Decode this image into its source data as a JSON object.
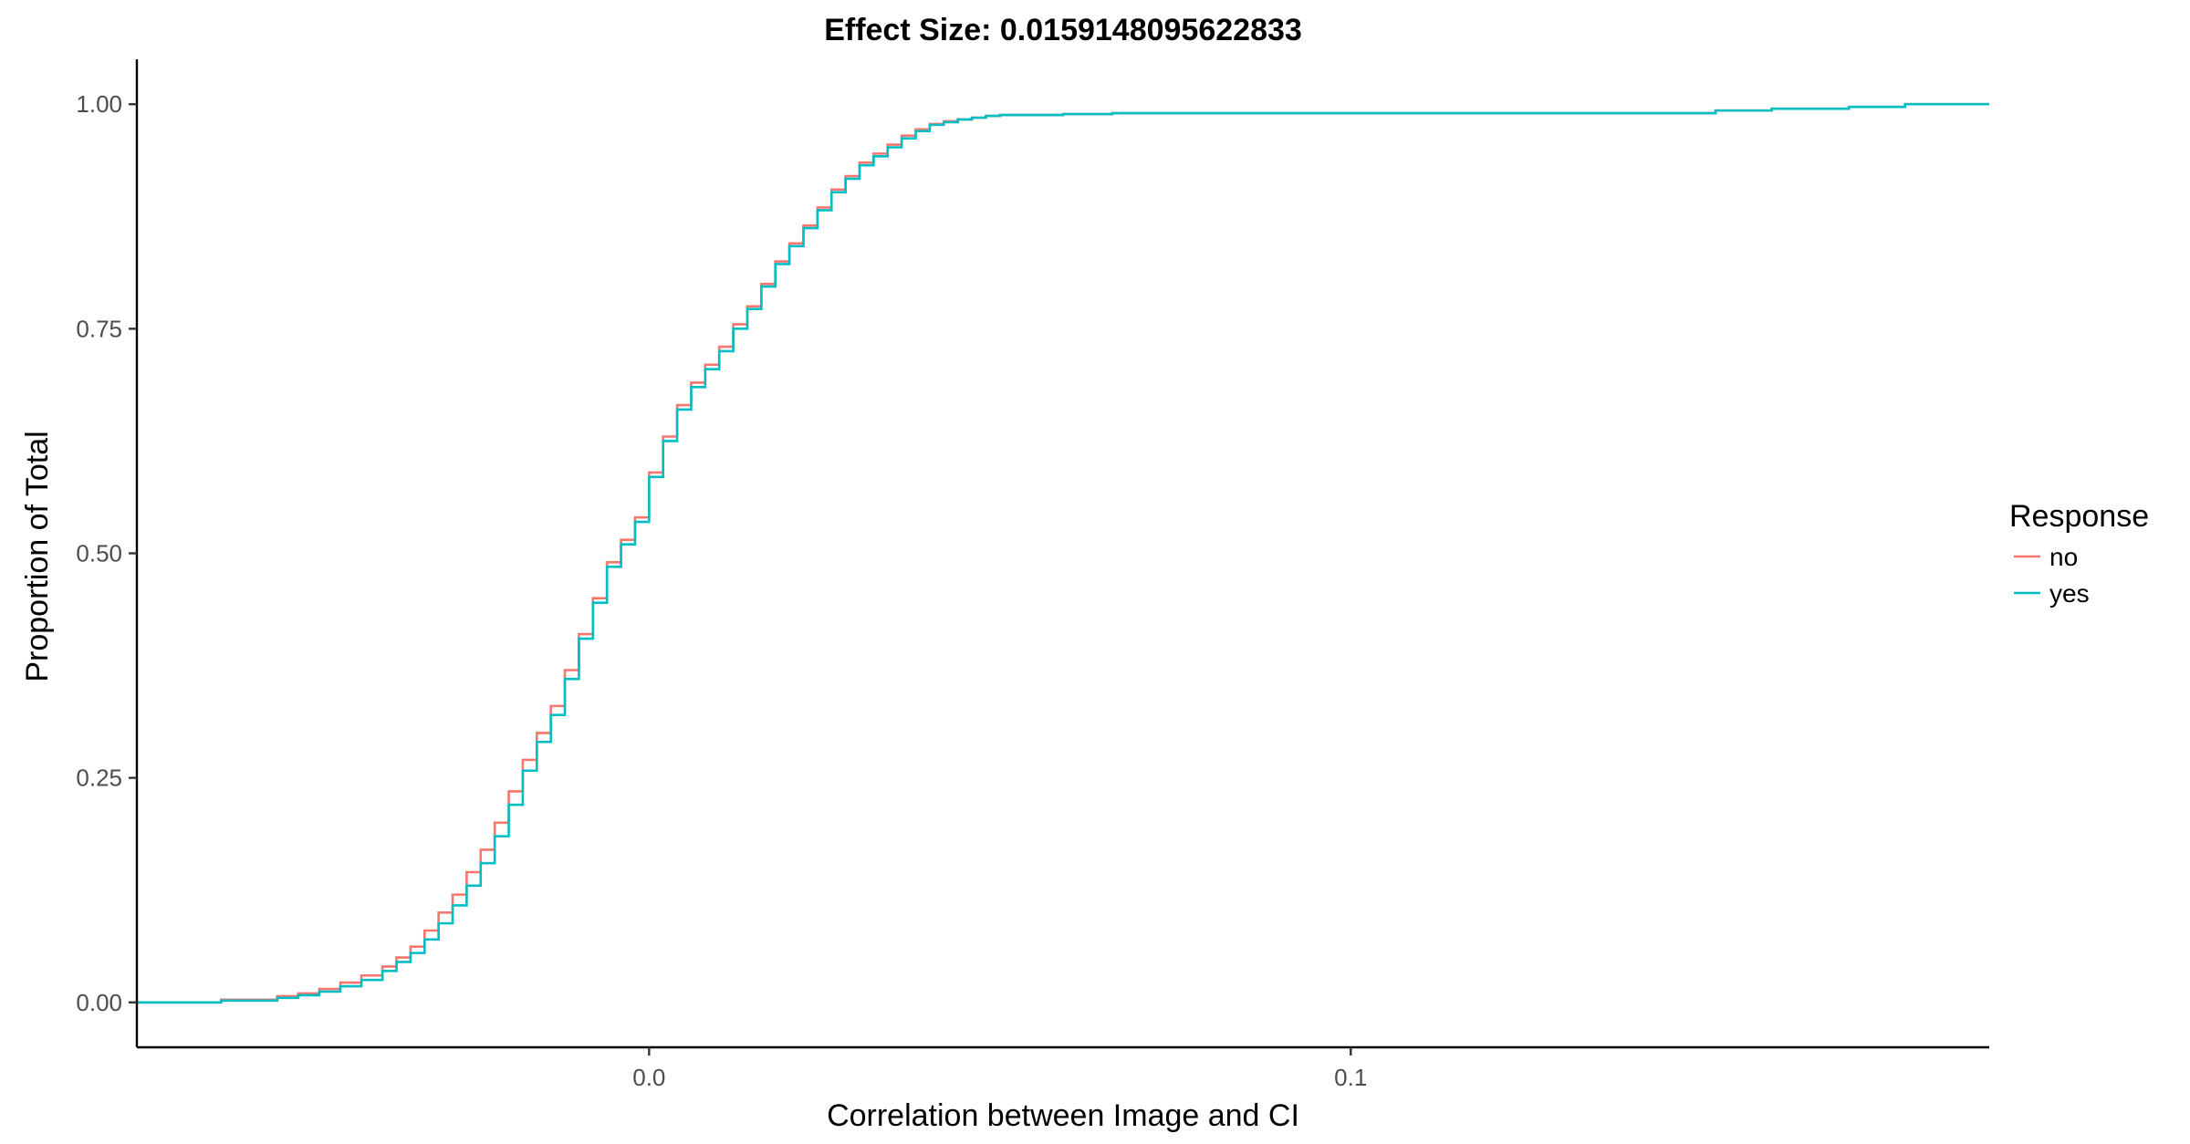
{
  "chart_data": {
    "type": "line",
    "title": "Effect Size: 0.0159148095622833",
    "xlabel": "Correlation between Image and CI",
    "ylabel": "Proportion of Total",
    "xlim": [
      -0.073,
      0.191
    ],
    "ylim": [
      -0.05,
      1.05
    ],
    "x_ticks": [
      0.0,
      0.1
    ],
    "x_tick_labels": [
      "0.0",
      "0.1"
    ],
    "y_ticks": [
      0.0,
      0.25,
      0.5,
      0.75,
      1.0
    ],
    "y_tick_labels": [
      "0.00",
      "0.25",
      "0.50",
      "0.75",
      "1.00"
    ],
    "grid": false,
    "step": true,
    "legend": {
      "title": "Response",
      "position": "right"
    },
    "series": [
      {
        "name": "no",
        "color": "#F8766D",
        "x": [
          -0.073,
          -0.061,
          -0.053,
          -0.05,
          -0.047,
          -0.044,
          -0.041,
          -0.038,
          -0.036,
          -0.034,
          -0.032,
          -0.03,
          -0.028,
          -0.026,
          -0.024,
          -0.022,
          -0.02,
          -0.018,
          -0.016,
          -0.014,
          -0.012,
          -0.01,
          -0.008,
          -0.006,
          -0.004,
          -0.002,
          0.0,
          0.002,
          0.004,
          0.006,
          0.008,
          0.01,
          0.012,
          0.014,
          0.016,
          0.018,
          0.02,
          0.022,
          0.024,
          0.026,
          0.028,
          0.03,
          0.032,
          0.034,
          0.036,
          0.038,
          0.04,
          0.042,
          0.044,
          0.046,
          0.048,
          0.05,
          0.059,
          0.066,
          0.1,
          0.14,
          0.152,
          0.16,
          0.171,
          0.179,
          0.191
        ],
        "y": [
          0.0,
          0.003,
          0.007,
          0.01,
          0.015,
          0.022,
          0.03,
          0.04,
          0.05,
          0.062,
          0.08,
          0.1,
          0.12,
          0.145,
          0.17,
          0.2,
          0.235,
          0.27,
          0.3,
          0.33,
          0.37,
          0.41,
          0.45,
          0.49,
          0.515,
          0.54,
          0.59,
          0.63,
          0.665,
          0.69,
          0.71,
          0.73,
          0.755,
          0.775,
          0.8,
          0.825,
          0.845,
          0.865,
          0.885,
          0.905,
          0.92,
          0.935,
          0.945,
          0.955,
          0.965,
          0.972,
          0.978,
          0.981,
          0.983,
          0.985,
          0.987,
          0.988,
          0.989,
          0.99,
          0.99,
          0.99,
          0.993,
          0.995,
          0.997,
          1.0,
          1.0
        ]
      },
      {
        "name": "yes",
        "color": "#00BFC4",
        "x": [
          -0.073,
          -0.061,
          -0.053,
          -0.05,
          -0.047,
          -0.044,
          -0.041,
          -0.038,
          -0.036,
          -0.034,
          -0.032,
          -0.03,
          -0.028,
          -0.026,
          -0.024,
          -0.022,
          -0.02,
          -0.018,
          -0.016,
          -0.014,
          -0.012,
          -0.01,
          -0.008,
          -0.006,
          -0.004,
          -0.002,
          0.0,
          0.002,
          0.004,
          0.006,
          0.008,
          0.01,
          0.012,
          0.014,
          0.016,
          0.018,
          0.02,
          0.022,
          0.024,
          0.026,
          0.028,
          0.03,
          0.032,
          0.034,
          0.036,
          0.038,
          0.04,
          0.042,
          0.044,
          0.046,
          0.048,
          0.05,
          0.059,
          0.066,
          0.1,
          0.14,
          0.152,
          0.16,
          0.171,
          0.179,
          0.191
        ],
        "y": [
          0.0,
          0.002,
          0.005,
          0.008,
          0.012,
          0.018,
          0.025,
          0.035,
          0.045,
          0.055,
          0.07,
          0.088,
          0.108,
          0.13,
          0.155,
          0.185,
          0.22,
          0.258,
          0.29,
          0.32,
          0.36,
          0.405,
          0.445,
          0.485,
          0.51,
          0.535,
          0.585,
          0.625,
          0.66,
          0.685,
          0.705,
          0.725,
          0.75,
          0.772,
          0.797,
          0.822,
          0.842,
          0.862,
          0.882,
          0.902,
          0.917,
          0.932,
          0.942,
          0.952,
          0.962,
          0.97,
          0.977,
          0.98,
          0.983,
          0.985,
          0.987,
          0.988,
          0.989,
          0.99,
          0.99,
          0.99,
          0.993,
          0.995,
          0.997,
          1.0,
          1.0
        ]
      }
    ]
  }
}
